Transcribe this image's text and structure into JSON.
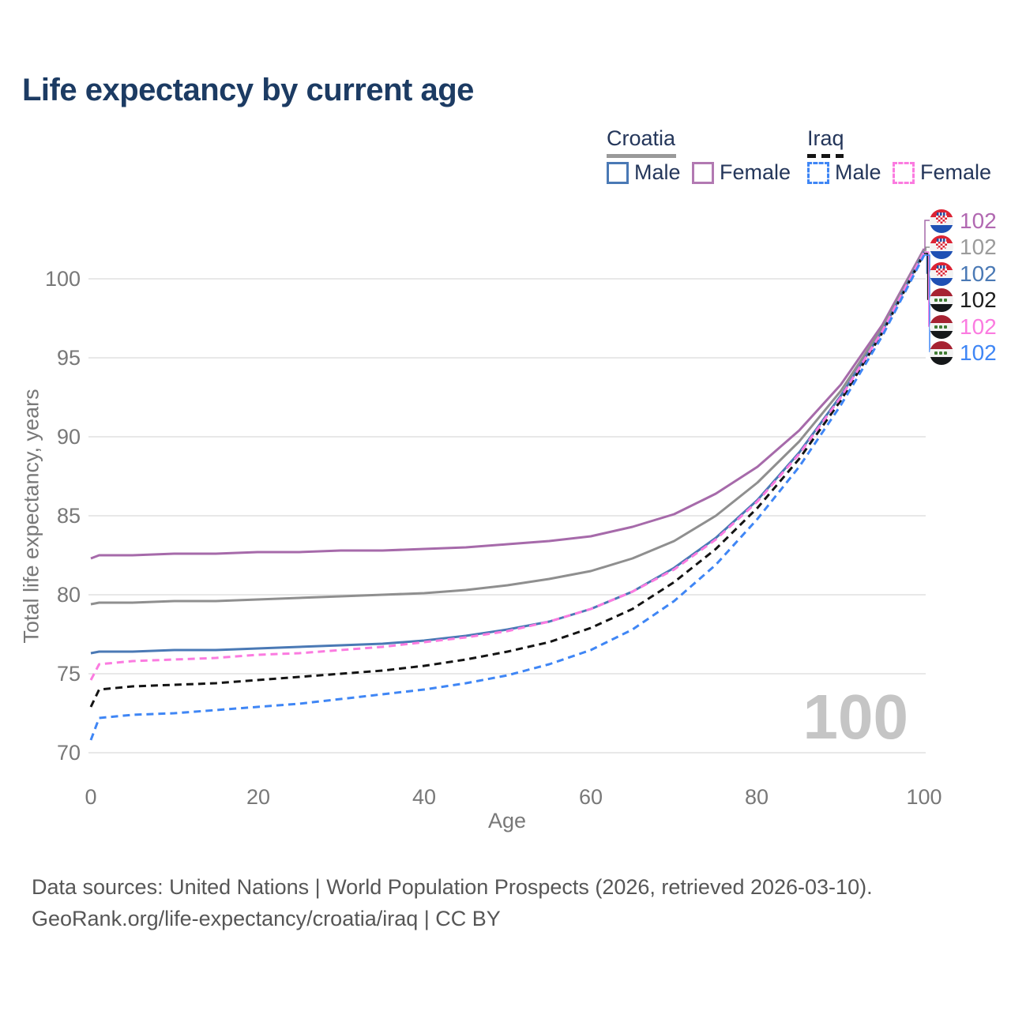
{
  "title": "Life expectancy by current age",
  "legend": {
    "groups": [
      {
        "country": "Croatia",
        "line_style": "solid",
        "underline_color": "#9a9a9a",
        "items": [
          {
            "label": "Male",
            "color": "#4a79b5",
            "dashed": false
          },
          {
            "label": "Female",
            "color": "#b279b2",
            "dashed": false
          }
        ]
      },
      {
        "country": "Iraq",
        "line_style": "dashed",
        "underline_color": "#141414",
        "items": [
          {
            "label": "Male",
            "color": "#3f86f5",
            "dashed": true
          },
          {
            "label": "Female",
            "color": "#fb7be0",
            "dashed": true
          }
        ]
      }
    ]
  },
  "axes": {
    "y": {
      "title": "Total life expectancy, years",
      "ticks": [
        "100",
        "95",
        "90",
        "85",
        "80",
        "75",
        "70"
      ]
    },
    "x": {
      "title": "Age",
      "ticks": [
        "0",
        "20",
        "40",
        "60",
        "80",
        "100"
      ]
    }
  },
  "watermark": "100",
  "end_labels": {
    "rows": [
      {
        "flag": "croatia",
        "series": "Croatia Female",
        "value": "102",
        "color": "#b168b1"
      },
      {
        "flag": "croatia",
        "series": "Croatia",
        "value": "102",
        "color": "#9b9b9b"
      },
      {
        "flag": "croatia",
        "series": "Croatia Male",
        "value": "102",
        "color": "#4a79b5"
      },
      {
        "flag": "iraq",
        "series": "Iraq",
        "value": "102",
        "color": "#1c1c1c"
      },
      {
        "flag": "iraq",
        "series": "Iraq Female",
        "value": "102",
        "color": "#fb7be0"
      },
      {
        "flag": "iraq",
        "series": "Iraq Male",
        "value": "102",
        "color": "#3f86f5"
      }
    ]
  },
  "chart_data": {
    "type": "line",
    "title": "Life expectancy by current age",
    "xlabel": "Age",
    "ylabel": "Total life expectancy, years",
    "xlim": [
      0,
      100
    ],
    "ylim": [
      70,
      102
    ],
    "grid": "horizontal",
    "x": [
      0,
      1,
      5,
      10,
      15,
      20,
      25,
      30,
      35,
      40,
      45,
      50,
      55,
      60,
      65,
      70,
      75,
      80,
      85,
      90,
      95,
      100
    ],
    "series": [
      {
        "name": "Croatia Female",
        "color": "#a66aaa",
        "dash": false,
        "values": [
          82.3,
          82.5,
          82.5,
          82.6,
          82.6,
          82.7,
          82.7,
          82.8,
          82.8,
          82.9,
          83.0,
          83.2,
          83.4,
          83.7,
          84.3,
          85.1,
          86.4,
          88.1,
          90.4,
          93.3,
          97.1,
          101.9
        ]
      },
      {
        "name": "Croatia",
        "color": "#8f8f8f",
        "dash": false,
        "values": [
          79.4,
          79.5,
          79.5,
          79.6,
          79.6,
          79.7,
          79.8,
          79.9,
          80.0,
          80.1,
          80.3,
          80.6,
          81.0,
          81.5,
          82.3,
          83.4,
          85.0,
          87.1,
          89.7,
          92.9,
          96.9,
          101.8
        ]
      },
      {
        "name": "Croatia Male",
        "color": "#4a79b5",
        "dash": false,
        "values": [
          76.3,
          76.4,
          76.4,
          76.5,
          76.5,
          76.6,
          76.7,
          76.8,
          76.9,
          77.1,
          77.4,
          77.8,
          78.3,
          79.1,
          80.2,
          81.7,
          83.6,
          86.0,
          89.0,
          92.6,
          96.7,
          101.7
        ]
      },
      {
        "name": "Iraq",
        "color": "#141414",
        "dash": true,
        "values": [
          72.9,
          74.0,
          74.2,
          74.3,
          74.4,
          74.6,
          74.8,
          75.0,
          75.2,
          75.5,
          75.9,
          76.4,
          77.0,
          77.9,
          79.1,
          80.8,
          82.9,
          85.5,
          88.6,
          92.3,
          96.6,
          101.6
        ]
      },
      {
        "name": "Iraq Female",
        "color": "#fb7be0",
        "dash": true,
        "values": [
          74.6,
          75.6,
          75.8,
          75.9,
          76.0,
          76.2,
          76.3,
          76.5,
          76.7,
          77.0,
          77.3,
          77.7,
          78.3,
          79.1,
          80.2,
          81.6,
          83.5,
          85.9,
          88.9,
          92.5,
          96.7,
          101.7
        ]
      },
      {
        "name": "Iraq Male",
        "color": "#3f86f5",
        "dash": true,
        "values": [
          70.8,
          72.2,
          72.4,
          72.5,
          72.7,
          72.9,
          73.1,
          73.4,
          73.7,
          74.0,
          74.4,
          74.9,
          75.6,
          76.5,
          77.8,
          79.6,
          81.9,
          84.8,
          88.1,
          92.0,
          96.4,
          101.5
        ]
      }
    ]
  },
  "footer": {
    "line1": "Data sources: United Nations | World Population Prospects (2026, retrieved 2026-03-10).",
    "line2": "GeoRank.org/life-expectancy/croatia/iraq | CC BY"
  }
}
